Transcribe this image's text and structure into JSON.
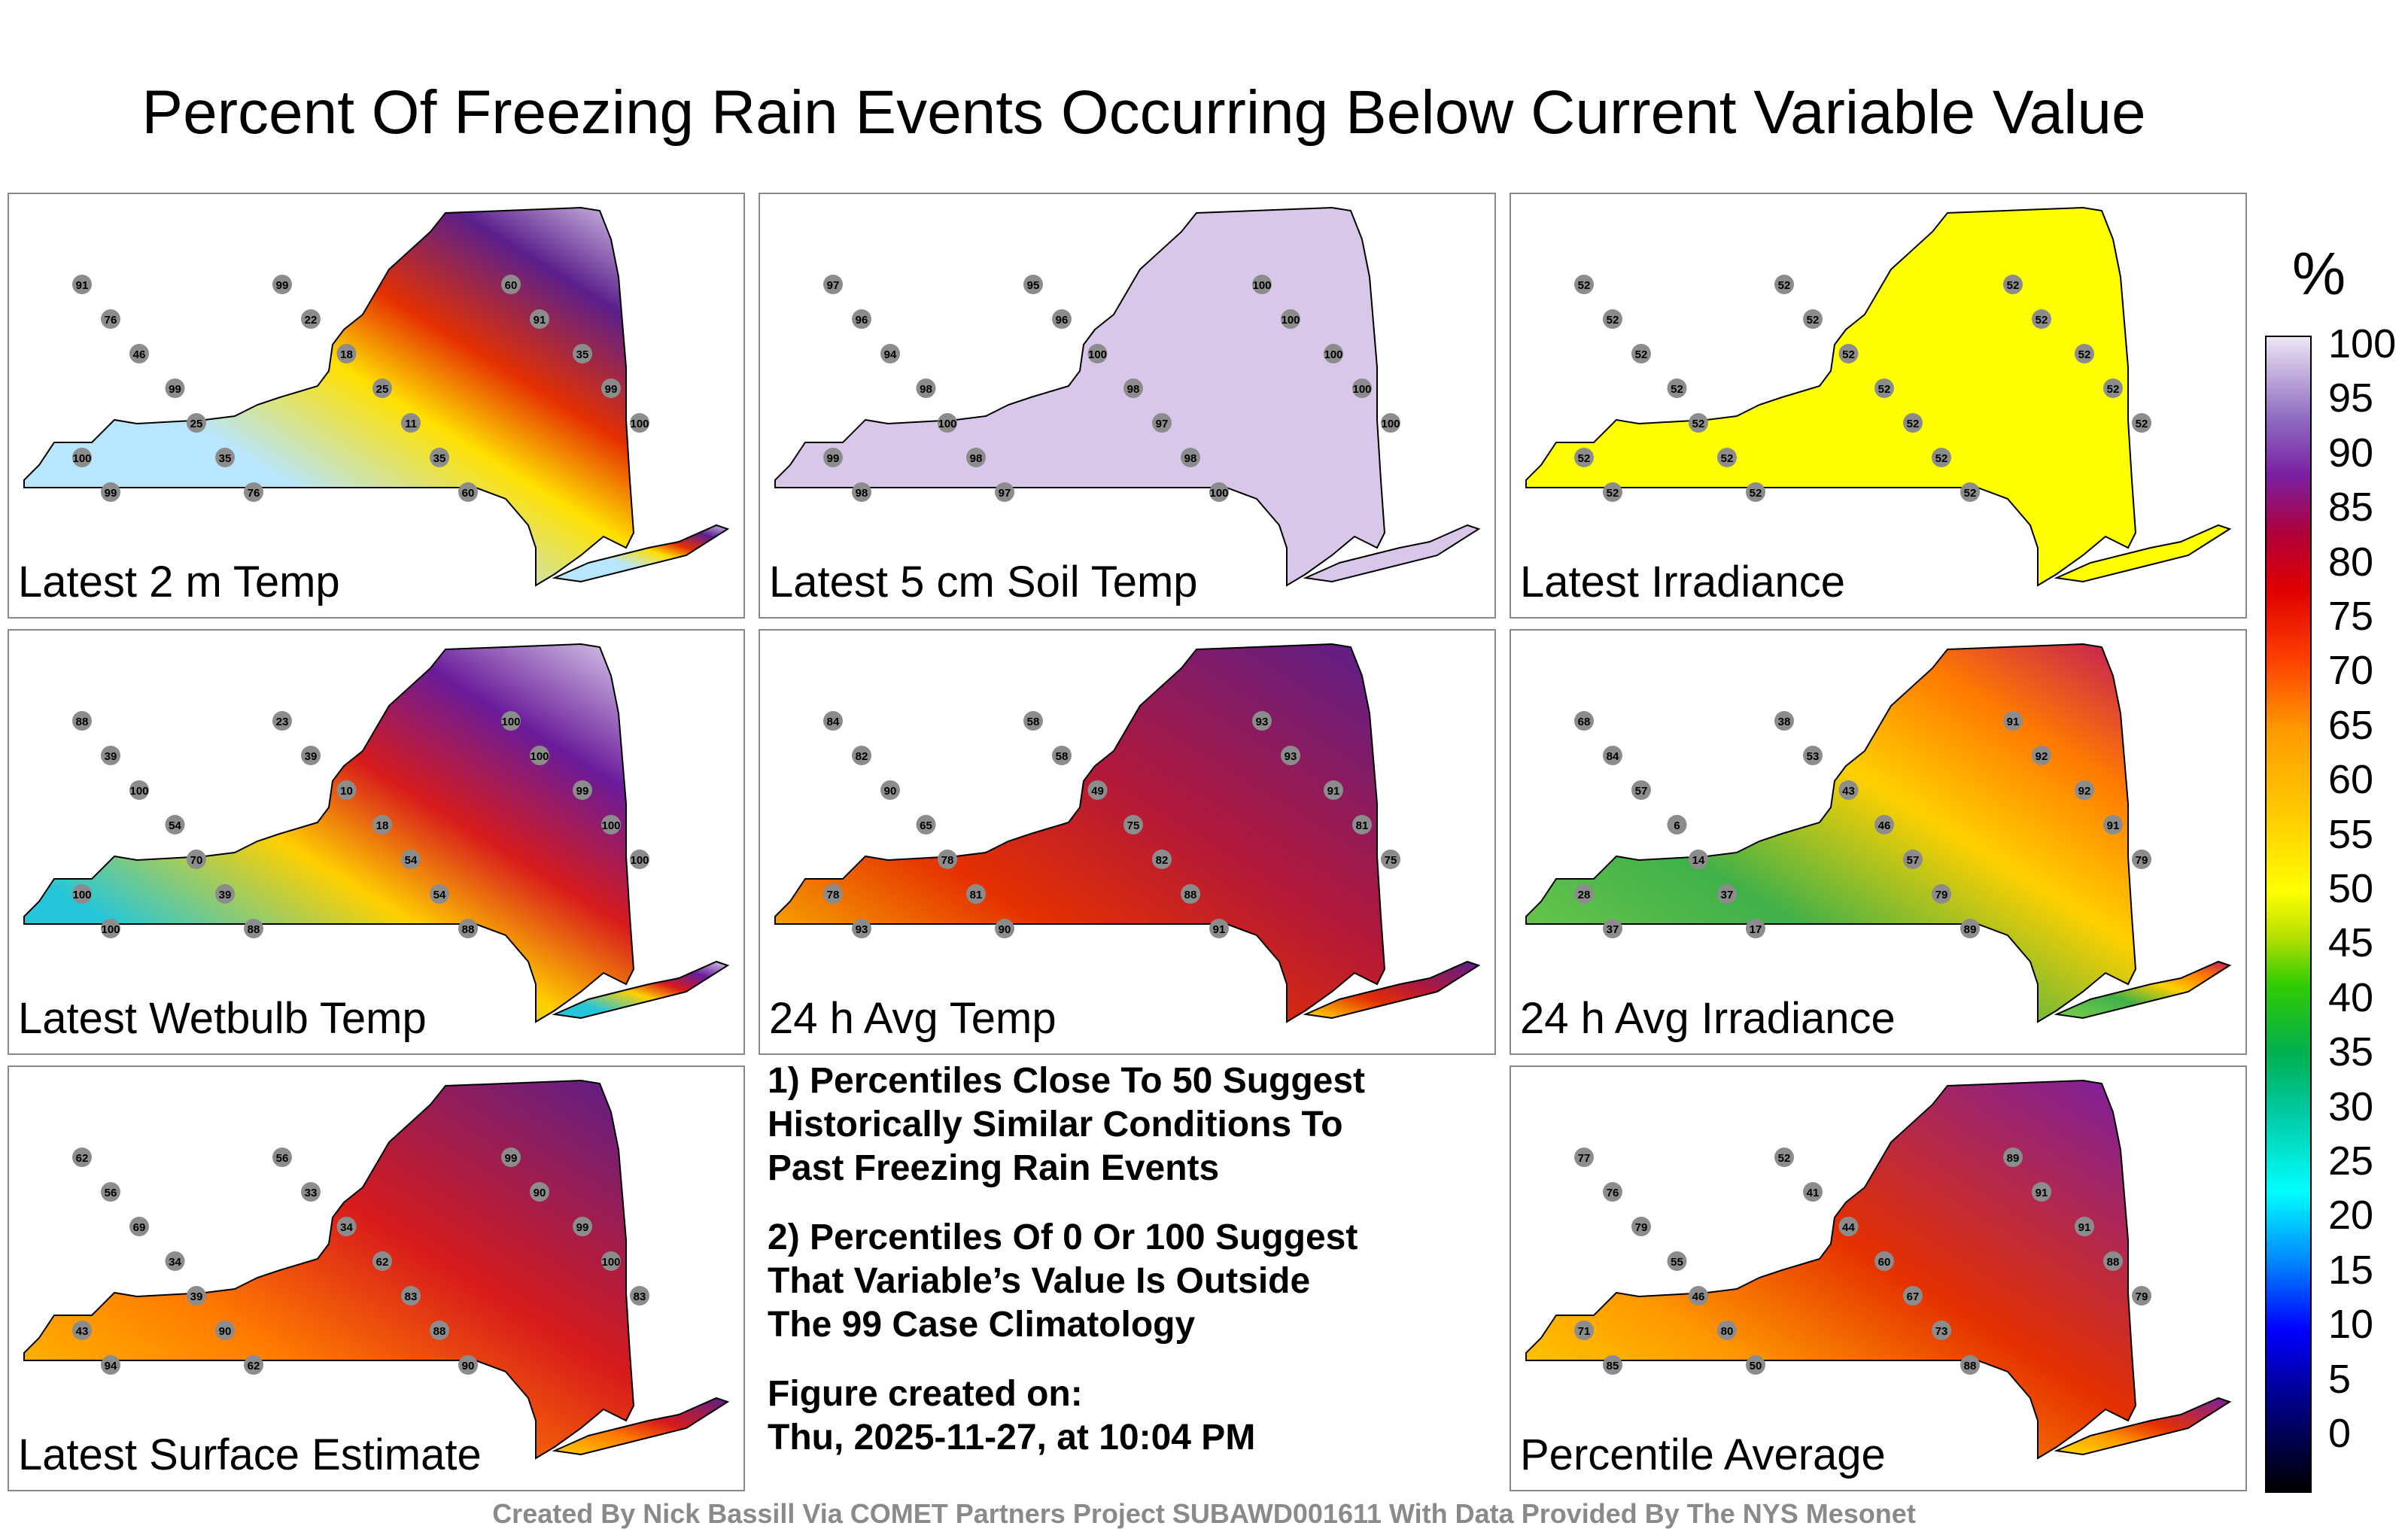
{
  "title": "Percent Of Freezing Rain Events Occurring Below Current Variable Value",
  "panels": [
    {
      "label": "Latest 2 m Temp",
      "scheme": "temp2m",
      "stations": [
        "91",
        "76",
        "46",
        "99",
        "25",
        "35",
        "76",
        "99",
        "22",
        "18",
        "25",
        "11",
        "35",
        "60",
        "60",
        "91",
        "35",
        "99",
        "100",
        "100",
        "99"
      ]
    },
    {
      "label": "Latest 5 cm Soil Temp",
      "scheme": "soil",
      "stations": [
        "97",
        "96",
        "94",
        "98",
        "100",
        "98",
        "97",
        "95",
        "96",
        "100",
        "98",
        "97",
        "98",
        "100",
        "100",
        "100",
        "100",
        "100",
        "100",
        "99",
        "98"
      ]
    },
    {
      "label": "Latest Irradiance",
      "scheme": "irr",
      "stations": [
        "52",
        "52",
        "52",
        "52",
        "52",
        "52",
        "52",
        "52",
        "52",
        "52",
        "52",
        "52",
        "52",
        "52",
        "52",
        "52",
        "52",
        "52",
        "52",
        "52",
        "52"
      ]
    },
    {
      "label": "Latest Wetbulb Temp",
      "scheme": "wet",
      "stations": [
        "88",
        "39",
        "100",
        "54",
        "70",
        "39",
        "88",
        "23",
        "39",
        "10",
        "18",
        "54",
        "54",
        "88",
        "100",
        "100",
        "99",
        "100",
        "100",
        "100",
        "100"
      ]
    },
    {
      "label": "24 h Avg Temp",
      "scheme": "avg",
      "stations": [
        "84",
        "82",
        "90",
        "65",
        "78",
        "81",
        "90",
        "58",
        "58",
        "49",
        "75",
        "82",
        "88",
        "91",
        "93",
        "93",
        "91",
        "81",
        "75",
        "78",
        "93"
      ]
    },
    {
      "label": "24 h Avg Irradiance",
      "scheme": "avgirr",
      "stations": [
        "68",
        "84",
        "57",
        "6",
        "14",
        "37",
        "17",
        "38",
        "53",
        "43",
        "46",
        "57",
        "79",
        "89",
        "91",
        "92",
        "92",
        "91",
        "79",
        "28",
        "37"
      ]
    },
    {
      "label": "Latest Surface Estimate",
      "scheme": "sfc",
      "stations": [
        "62",
        "56",
        "69",
        "34",
        "39",
        "90",
        "62",
        "56",
        "33",
        "34",
        "62",
        "83",
        "88",
        "90",
        "99",
        "90",
        "99",
        "100",
        "83",
        "43",
        "94"
      ]
    },
    {
      "label": "Percentile Average",
      "scheme": "pavg",
      "stations": [
        "77",
        "76",
        "79",
        "55",
        "46",
        "80",
        "50",
        "52",
        "41",
        "44",
        "60",
        "67",
        "73",
        "88",
        "89",
        "91",
        "91",
        "88",
        "79",
        "71",
        "85"
      ]
    }
  ],
  "notes": [
    "1) Percentiles Close To 50 Suggest\nHistorically Similar Conditions To\nPast Freezing Rain Events",
    "2) Percentiles Of 0 Or 100 Suggest\nThat Variable’s Value Is Outside\nThe 99 Case Climatology",
    "Figure created on:\nThu, 2025-11-27, at 10:04 PM"
  ],
  "colorbar": {
    "unit": "%",
    "ticks": [
      "100",
      "95",
      "90",
      "85",
      "80",
      "75",
      "70",
      "65",
      "60",
      "55",
      "50",
      "45",
      "40",
      "35",
      "30",
      "25",
      "20",
      "15",
      "10",
      "5",
      "0"
    ]
  },
  "credit": "Created By Nick Bassill Via COMET Partners Project SUBAWD001611 With Data Provided By The NYS Mesonet",
  "colors": {
    "station": "#8c8c8c",
    "border": "#000000",
    "irr": "#ffff00",
    "soil": "#d9c7ea"
  }
}
